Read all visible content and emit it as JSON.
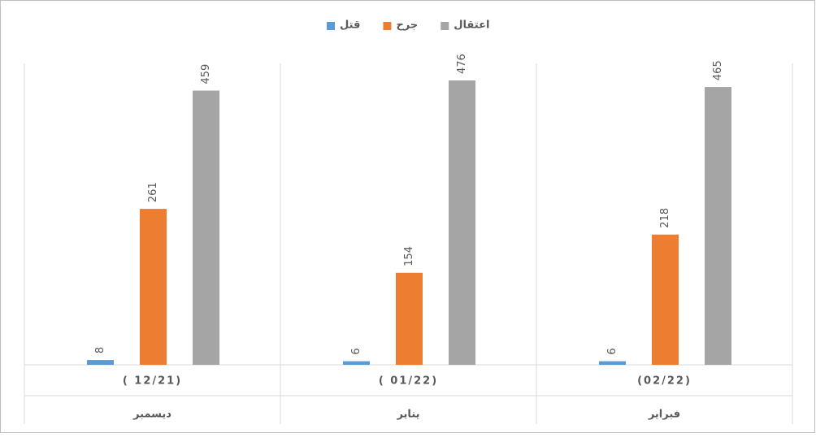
{
  "chart_data": {
    "type": "bar",
    "categories": [
      "( 12/21)",
      "( 01/22)",
      "(02/22)"
    ],
    "subcategories": [
      "ديسمبر",
      "يناير",
      "فبراير"
    ],
    "series": [
      {
        "name": "قتل",
        "color": "#5b9bd5",
        "values": [
          8,
          6,
          6
        ]
      },
      {
        "name": "جرح",
        "color": "#ed7d31",
        "values": [
          261,
          154,
          218
        ]
      },
      {
        "name": "اعتقال",
        "color": "#a5a5a5",
        "values": [
          459,
          476,
          465
        ]
      }
    ],
    "legend": "top"
  }
}
